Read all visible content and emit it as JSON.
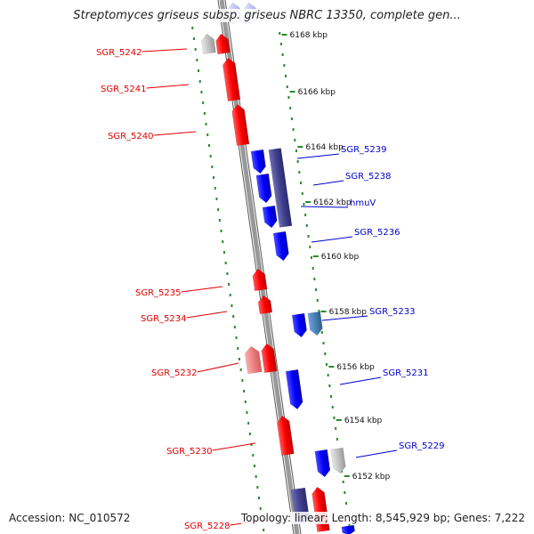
{
  "title": "Streptomyces griseus subsp. griseus NBRC 13350, complete gen...",
  "footer": {
    "accession": "Accession: NC_010572",
    "summary": "Topology: linear; Length: 8,545,929 bp; Genes: 7,222"
  },
  "colors": {
    "forward_strand": "#ff0000",
    "reverse_strand": "#0000ff",
    "axis_dots": "#2a8a2a",
    "backbone": "#999999"
  },
  "kbp_labels": [
    "6168 kbp",
    "6166 kbp",
    "6164 kbp",
    "6162 kbp",
    "6160 kbp",
    "6158 kbp",
    "6156 kbp",
    "6154 kbp",
    "6152 kbp"
  ],
  "red_genes": [
    "SGR_5242",
    "SGR_5241",
    "SGR_5240",
    "SGR_5235",
    "SGR_5234",
    "SGR_5232",
    "SGR_5230",
    "SGR_5228"
  ],
  "blue_genes": [
    "SGR_5239",
    "SGR_5238",
    "hmuV",
    "SGR_5236",
    "SGR_5233",
    "SGR_5231",
    "SGR_5229"
  ]
}
